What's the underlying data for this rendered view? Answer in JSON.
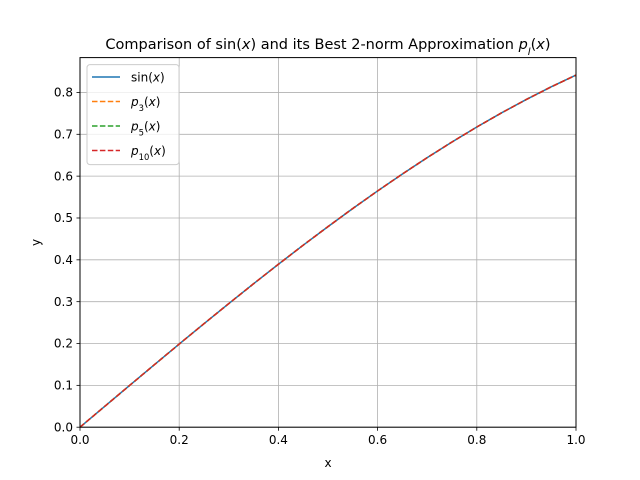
{
  "chart_data": {
    "type": "line",
    "title_parts": [
      {
        "text": "Comparison of sin(",
        "italic": false
      },
      {
        "text": "x",
        "italic": true
      },
      {
        "text": ") and its Best 2-norm Approximation ",
        "italic": false
      },
      {
        "text": "p",
        "italic": true
      },
      {
        "text": "l",
        "italic": true,
        "sub": true
      },
      {
        "text": "(",
        "italic": false
      },
      {
        "text": "x",
        "italic": true
      },
      {
        "text": ")",
        "italic": false
      }
    ],
    "xlabel": "x",
    "ylabel": "y",
    "xlim": [
      0.0,
      1.0
    ],
    "ylim": [
      0.0,
      0.8833
    ],
    "xticks": [
      0.0,
      0.2,
      0.4,
      0.6,
      0.8,
      1.0
    ],
    "xtick_labels": [
      "0.0",
      "0.2",
      "0.4",
      "0.6",
      "0.8",
      "1.0"
    ],
    "yticks": [
      0.0,
      0.1,
      0.2,
      0.3,
      0.4,
      0.5,
      0.6,
      0.7,
      0.8
    ],
    "ytick_labels": [
      "0.0",
      "0.1",
      "0.2",
      "0.3",
      "0.4",
      "0.5",
      "0.6",
      "0.7",
      "0.8"
    ],
    "grid": true,
    "legend_position": "top-left",
    "x": [
      0.0,
      0.05,
      0.1,
      0.15,
      0.2,
      0.25,
      0.3,
      0.35,
      0.4,
      0.45,
      0.5,
      0.55,
      0.6,
      0.65,
      0.7,
      0.75,
      0.8,
      0.85,
      0.9,
      0.95,
      1.0
    ],
    "series": [
      {
        "legend_parts": [
          {
            "text": "sin(",
            "italic": false
          },
          {
            "text": "x",
            "italic": true
          },
          {
            "text": ")",
            "italic": false
          }
        ],
        "color": "#1f77b4",
        "dash": "solid",
        "values": [
          0.0,
          0.05,
          0.0998,
          0.1494,
          0.1987,
          0.2474,
          0.2955,
          0.3429,
          0.3894,
          0.435,
          0.4794,
          0.5227,
          0.5646,
          0.6052,
          0.6442,
          0.6816,
          0.7174,
          0.7513,
          0.7833,
          0.8134,
          0.8415
        ]
      },
      {
        "legend_parts": [
          {
            "text": "p",
            "italic": true
          },
          {
            "text": "3",
            "italic": false,
            "sub": true
          },
          {
            "text": "(",
            "italic": false
          },
          {
            "text": "x",
            "italic": true
          },
          {
            "text": ")",
            "italic": false
          }
        ],
        "color": "#ff7f0e",
        "dash": "dashed",
        "values": [
          0.0,
          0.05,
          0.0998,
          0.1494,
          0.1987,
          0.2474,
          0.2955,
          0.3429,
          0.3894,
          0.435,
          0.4794,
          0.5227,
          0.5646,
          0.6052,
          0.6442,
          0.6816,
          0.7174,
          0.7513,
          0.7833,
          0.8134,
          0.8415
        ]
      },
      {
        "legend_parts": [
          {
            "text": "p",
            "italic": true
          },
          {
            "text": "5",
            "italic": false,
            "sub": true
          },
          {
            "text": "(",
            "italic": false
          },
          {
            "text": "x",
            "italic": true
          },
          {
            "text": ")",
            "italic": false
          }
        ],
        "color": "#2ca02c",
        "dash": "dashed",
        "values": [
          0.0,
          0.05,
          0.0998,
          0.1494,
          0.1987,
          0.2474,
          0.2955,
          0.3429,
          0.3894,
          0.435,
          0.4794,
          0.5227,
          0.5646,
          0.6052,
          0.6442,
          0.6816,
          0.7174,
          0.7513,
          0.7833,
          0.8134,
          0.8415
        ]
      },
      {
        "legend_parts": [
          {
            "text": "p",
            "italic": true
          },
          {
            "text": "10",
            "italic": false,
            "sub": true
          },
          {
            "text": "(",
            "italic": false
          },
          {
            "text": "x",
            "italic": true
          },
          {
            "text": ")",
            "italic": false
          }
        ],
        "color": "#d62728",
        "dash": "dashed",
        "values": [
          0.0,
          0.05,
          0.0998,
          0.1494,
          0.1987,
          0.2474,
          0.2955,
          0.3429,
          0.3894,
          0.435,
          0.4794,
          0.5227,
          0.5646,
          0.6052,
          0.6442,
          0.6816,
          0.7174,
          0.7513,
          0.7833,
          0.8134,
          0.8415
        ]
      }
    ]
  }
}
